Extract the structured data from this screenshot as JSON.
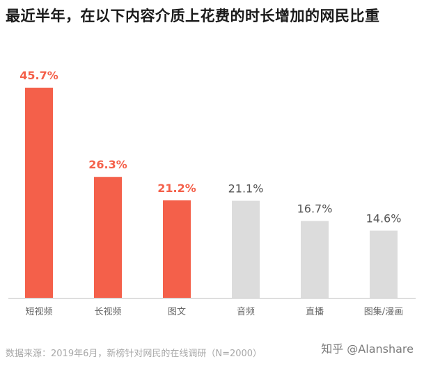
{
  "chart_data": {
    "type": "bar",
    "title": "最近半年，在以下内容介质上花费的时长增加的网民比重",
    "categories": [
      "短视频",
      "长视频",
      "图文",
      "音频",
      "直播",
      "图集/漫画"
    ],
    "values": [
      45.7,
      26.3,
      21.2,
      21.1,
      16.7,
      14.6
    ],
    "value_labels": [
      "45.7%",
      "26.3%",
      "21.2%",
      "21.1%",
      "16.7%",
      "14.6%"
    ],
    "highlighted": [
      true,
      true,
      true,
      false,
      false,
      false
    ],
    "ylim": [
      0,
      45.7
    ],
    "grid": false,
    "legend": "none",
    "xlabel": "",
    "ylabel": ""
  },
  "colors": {
    "highlight": "#f4604a",
    "muted_bar": "#dcdcdc",
    "muted_label": "#555555",
    "axis": "#bfbfbf"
  },
  "footer": {
    "source": "数据来源：2019年6月，新榜针对网民的在线调研（N=2000）",
    "credit": "知乎 @Alanshare"
  }
}
